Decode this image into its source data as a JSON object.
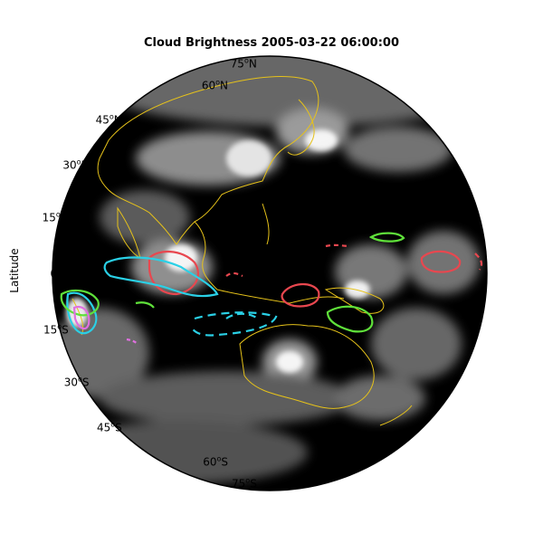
{
  "title": "Cloud Brightness 2005-03-22 06:00:00",
  "ylabel": "Latitude",
  "lat_ticks": [
    {
      "deg": "75",
      "hem": "N",
      "lat": 75
    },
    {
      "deg": "60",
      "hem": "N",
      "lat": 60
    },
    {
      "deg": "45",
      "hem": "N",
      "lat": 45
    },
    {
      "deg": "30",
      "hem": "N",
      "lat": 30
    },
    {
      "deg": "15",
      "hem": "N",
      "lat": 15
    },
    {
      "deg": "0",
      "hem": "",
      "lat": 0
    },
    {
      "deg": "15",
      "hem": "S",
      "lat": -15
    },
    {
      "deg": "30",
      "hem": "S",
      "lat": -30
    },
    {
      "deg": "45",
      "hem": "S",
      "lat": -45
    },
    {
      "deg": "60",
      "hem": "S",
      "lat": -60
    },
    {
      "deg": "75",
      "hem": "S",
      "lat": -75
    }
  ],
  "colors": {
    "globe": "#000000",
    "coastline": "#e6c21a",
    "contour_red": "#e8474f",
    "contour_cyan": "#2ad0e6",
    "contour_green": "#5fe03a",
    "contour_magenta": "#e070e0"
  }
}
